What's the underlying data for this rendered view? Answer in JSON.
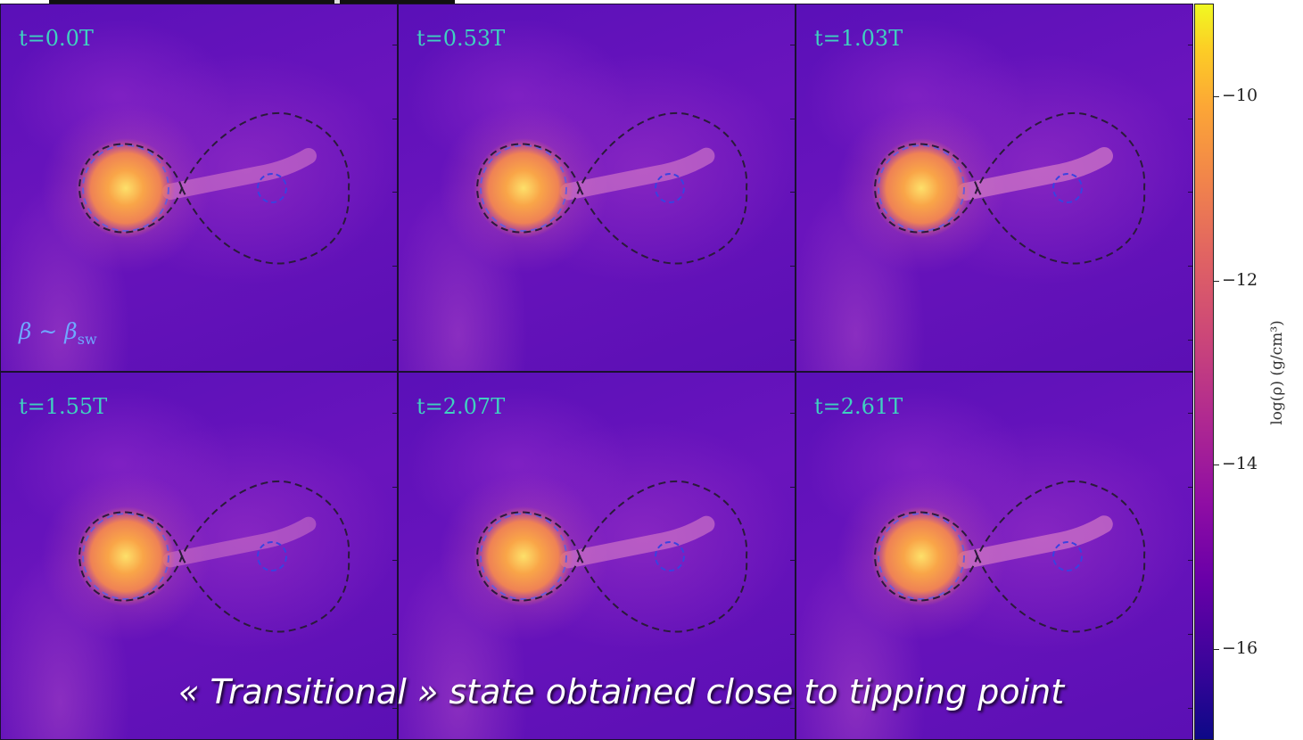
{
  "panels": [
    {
      "time": "t=0.0T",
      "beta": true,
      "stream_strength": 0.5
    },
    {
      "time": "t=0.53T",
      "beta": false,
      "stream_strength": 0.6
    },
    {
      "time": "t=1.03T",
      "beta": false,
      "stream_strength": 0.75
    },
    {
      "time": "t=1.55T",
      "beta": false,
      "stream_strength": 0.35
    },
    {
      "time": "t=2.07T",
      "beta": false,
      "stream_strength": 0.6
    },
    {
      "time": "t=2.61T",
      "beta": false,
      "stream_strength": 0.7
    }
  ],
  "beta_label": {
    "symbol": "β ∼ β",
    "subscript": "sw"
  },
  "colorbar": {
    "title": "log(ρ)  (g/cm³)",
    "ticks": [
      "−10",
      "−12",
      "−14",
      "−16"
    ]
  },
  "caption": "«  Transitional  » state obtained close to tipping point",
  "colors": {
    "label": "#3fd1c0",
    "beta": "#6fa8ff"
  }
}
